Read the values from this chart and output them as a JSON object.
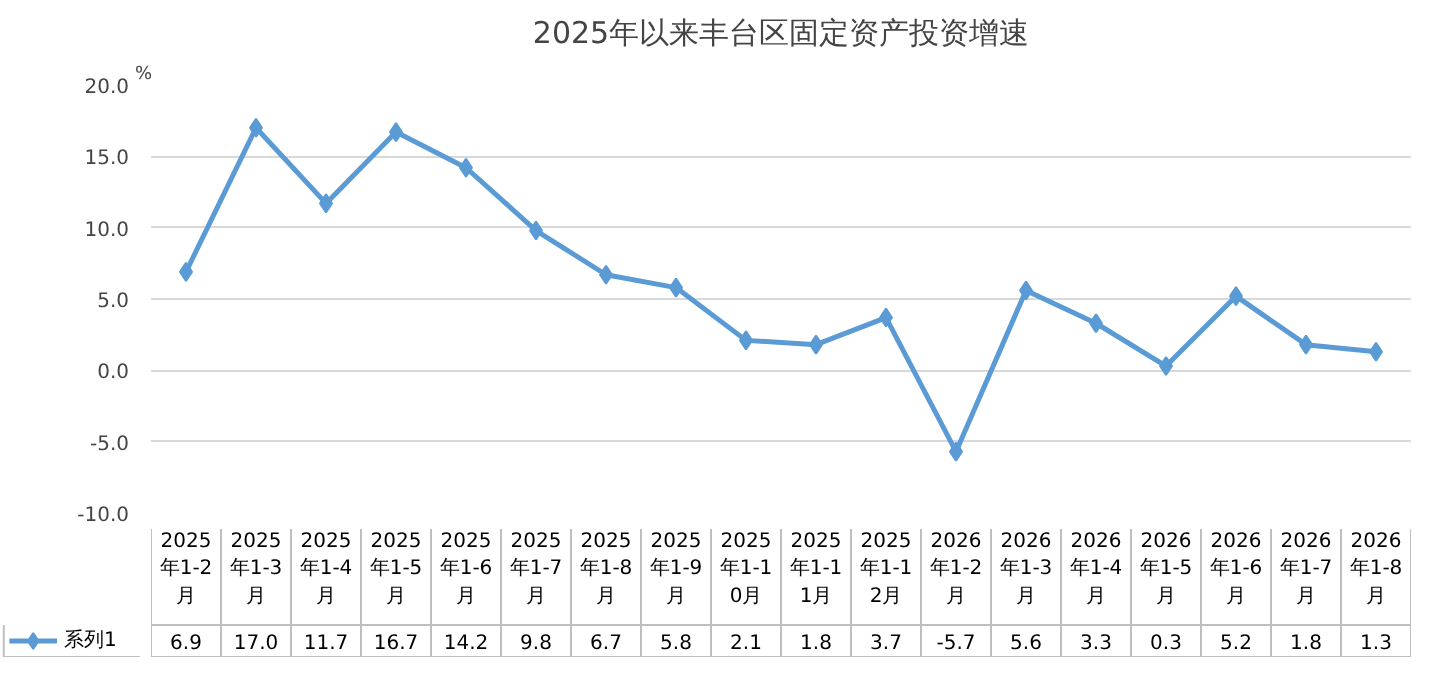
{
  "chart_data": {
    "type": "line",
    "title": "2025年以来丰台区固定资产投资增速",
    "ylabel": "%",
    "categories": [
      "2025年1-2月",
      "2025年1-3月",
      "2025年1-4月",
      "2025年1-5月",
      "2025年1-6月",
      "2025年1-7月",
      "2025年1-8月",
      "2025年1-9月",
      "2025年1-10月",
      "2025年1-11月",
      "2025年1-12月",
      "2026年1-2月",
      "2026年1-3月",
      "2026年1-4月",
      "2026年1-5月",
      "2026年1-6月",
      "2026年1-7月",
      "2026年1-8月"
    ],
    "series": [
      {
        "name": "系列1",
        "color": "#5b9bd5",
        "values": [
          6.9,
          17.0,
          11.7,
          16.7,
          14.2,
          9.8,
          6.7,
          5.8,
          2.1,
          1.8,
          3.7,
          -5.7,
          5.6,
          3.3,
          0.3,
          5.2,
          1.8,
          1.3
        ],
        "value_labels": [
          "6.9",
          "17.0",
          "11.7",
          "16.7",
          "14.2",
          "9.8",
          "6.7",
          "5.8",
          "2.1",
          "1.8",
          "3.7",
          "-5.7",
          "5.6",
          "3.3",
          "0.3",
          "5.2",
          "1.8",
          "1.3"
        ]
      }
    ],
    "ylim": [
      -10,
      20
    ],
    "yticks": [
      {
        "value": -10,
        "label": "-10.0"
      },
      {
        "value": -5,
        "label": "-5.0"
      },
      {
        "value": 0,
        "label": "0.0"
      },
      {
        "value": 5,
        "label": "5.0"
      },
      {
        "value": 10,
        "label": "10.0"
      },
      {
        "value": 15,
        "label": "15.0"
      },
      {
        "value": 20,
        "label": "20.0"
      }
    ],
    "grid": "y",
    "legend": "bottom",
    "marker": "diamond",
    "line_style": "solid",
    "data_labels": true
  }
}
